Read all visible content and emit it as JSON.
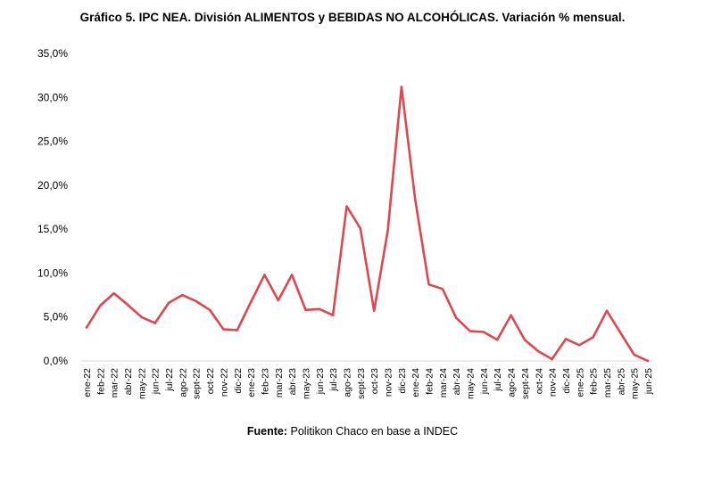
{
  "chart_data": {
    "type": "line",
    "title": "Gráfico 5. IPC NEA. División ALIMENTOS y BEBIDAS NO ALCOHÓLICAS. Variación % mensual.",
    "categories": [
      "ene-22",
      "feb-22",
      "mar-22",
      "abr-22",
      "may-22",
      "jun-22",
      "jul-22",
      "ago-22",
      "sept-22",
      "oct-22",
      "nov-22",
      "dic-22",
      "ene-23",
      "feb-23",
      "mar-23",
      "abr-23",
      "may-23",
      "jun-23",
      "jul-23",
      "ago-23",
      "sept-23",
      "oct-23",
      "nov-23",
      "dic-23",
      "ene-24",
      "feb-24",
      "mar-24",
      "abr-24",
      "may-24",
      "jun-24",
      "jul-24",
      "ago-24",
      "sept-24",
      "oct-24",
      "nov-24",
      "dic-24",
      "ene-25",
      "feb-25",
      "mar-25",
      "abr-25",
      "may-25",
      "jun-25"
    ],
    "series": [
      {
        "values": [
          3.8,
          6.3,
          7.7,
          6.4,
          5.0,
          4.3,
          6.6,
          7.5,
          6.8,
          5.8,
          3.6,
          3.5,
          6.7,
          9.8,
          6.9,
          9.8,
          5.8,
          5.9,
          5.2,
          17.6,
          15.1,
          5.7,
          14.8,
          31.2,
          18.4,
          8.7,
          8.2,
          4.9,
          3.4,
          3.3,
          2.4,
          5.2,
          2.4,
          1.1,
          0.2,
          2.5,
          1.8,
          2.7,
          5.7,
          3.2,
          0.7,
          0.0
        ]
      }
    ],
    "yticks": [
      "0,0%",
      "5,0%",
      "10,0%",
      "15,0%",
      "20,0%",
      "25,0%",
      "30,0%",
      "35,0%"
    ],
    "ylim": [
      0,
      35
    ],
    "line_color": "#e0464f",
    "grid": false,
    "legend": "none"
  },
  "source": {
    "label": "Fuente:",
    "text": " Politikon Chaco en base a INDEC"
  }
}
